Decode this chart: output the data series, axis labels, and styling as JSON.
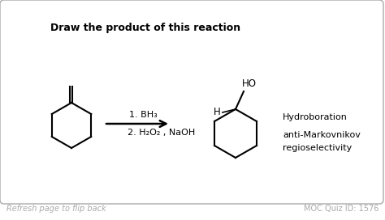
{
  "title": "Draw the product of this reaction",
  "title_fontsize": 9,
  "reagent_line1": "1. BH₃",
  "reagent_line2": "2. H₂O₂ , NaOH",
  "label_hydroboration": "Hydroboration",
  "label_anti": "anti-Markovnikov",
  "label_regio": "regioselectivity",
  "footer_left": "Refresh page to flip back",
  "footer_right": "MOC Quiz ID: 1576",
  "bg_color": "#ffffff",
  "border_color": "#aaaaaa",
  "text_color": "#000000",
  "footer_color": "#aaaaaa"
}
